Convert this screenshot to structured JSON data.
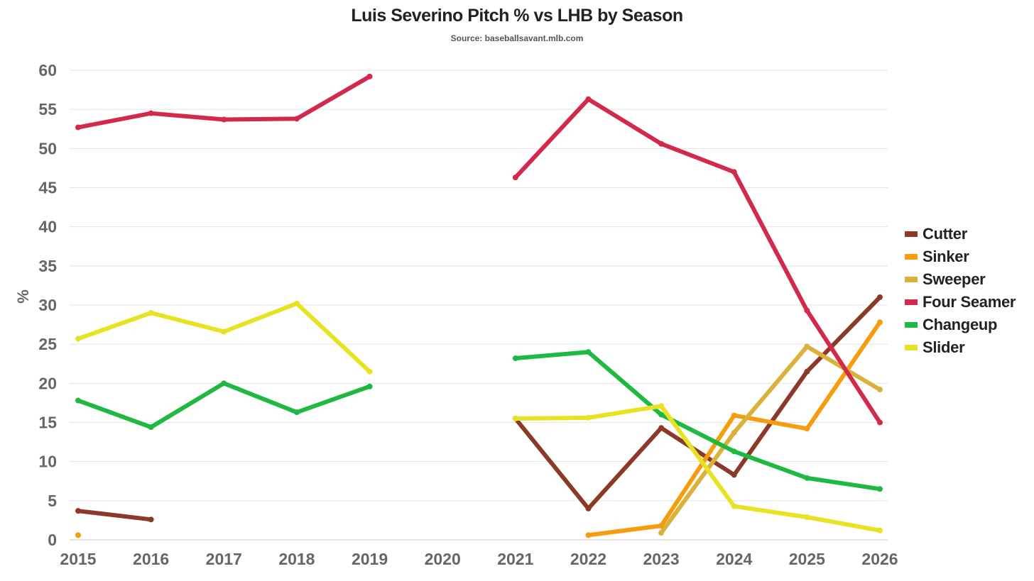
{
  "chart_data": {
    "type": "line",
    "title": "Luis Severino Pitch % vs LHB by Season",
    "subtitle": "Source: baseballsavant.mlb.com",
    "xlabel": "",
    "ylabel": "%",
    "ylim": [
      0,
      60
    ],
    "yticks": [
      0,
      5,
      10,
      15,
      20,
      25,
      30,
      35,
      40,
      45,
      50,
      55,
      60
    ],
    "grid": true,
    "legend_position": "right",
    "categories": [
      "2015",
      "2016",
      "2017",
      "2018",
      "2019",
      "2020",
      "2021",
      "2022",
      "2023",
      "2024",
      "2025",
      "2026"
    ],
    "series": [
      {
        "name": "Cutter",
        "color": "#8b3a2a",
        "values": [
          3.7,
          2.6,
          null,
          null,
          null,
          null,
          15.5,
          4.0,
          14.3,
          8.3,
          21.5,
          31.0
        ]
      },
      {
        "name": "Sinker",
        "color": "#f59c0f",
        "values": [
          0.6,
          null,
          null,
          null,
          null,
          null,
          null,
          0.6,
          1.8,
          15.9,
          14.2,
          27.8
        ]
      },
      {
        "name": "Sweeper",
        "color": "#d9b13b",
        "values": [
          null,
          null,
          null,
          null,
          null,
          null,
          null,
          null,
          0.9,
          13.7,
          24.7,
          19.2
        ]
      },
      {
        "name": "Four Seamer",
        "color": "#d12a4a",
        "values": [
          52.7,
          54.5,
          53.7,
          53.8,
          59.2,
          null,
          46.3,
          56.3,
          50.6,
          47.0,
          29.3,
          15.0
        ]
      },
      {
        "name": "Changeup",
        "color": "#1fb840",
        "values": [
          17.8,
          14.4,
          20.0,
          16.3,
          19.6,
          null,
          23.2,
          24.0,
          16.0,
          11.3,
          7.9,
          6.5
        ]
      },
      {
        "name": "Slider",
        "color": "#e8e322",
        "values": [
          25.7,
          29.0,
          26.6,
          30.2,
          21.5,
          null,
          15.5,
          15.6,
          17.1,
          4.3,
          2.9,
          1.2
        ]
      }
    ]
  }
}
